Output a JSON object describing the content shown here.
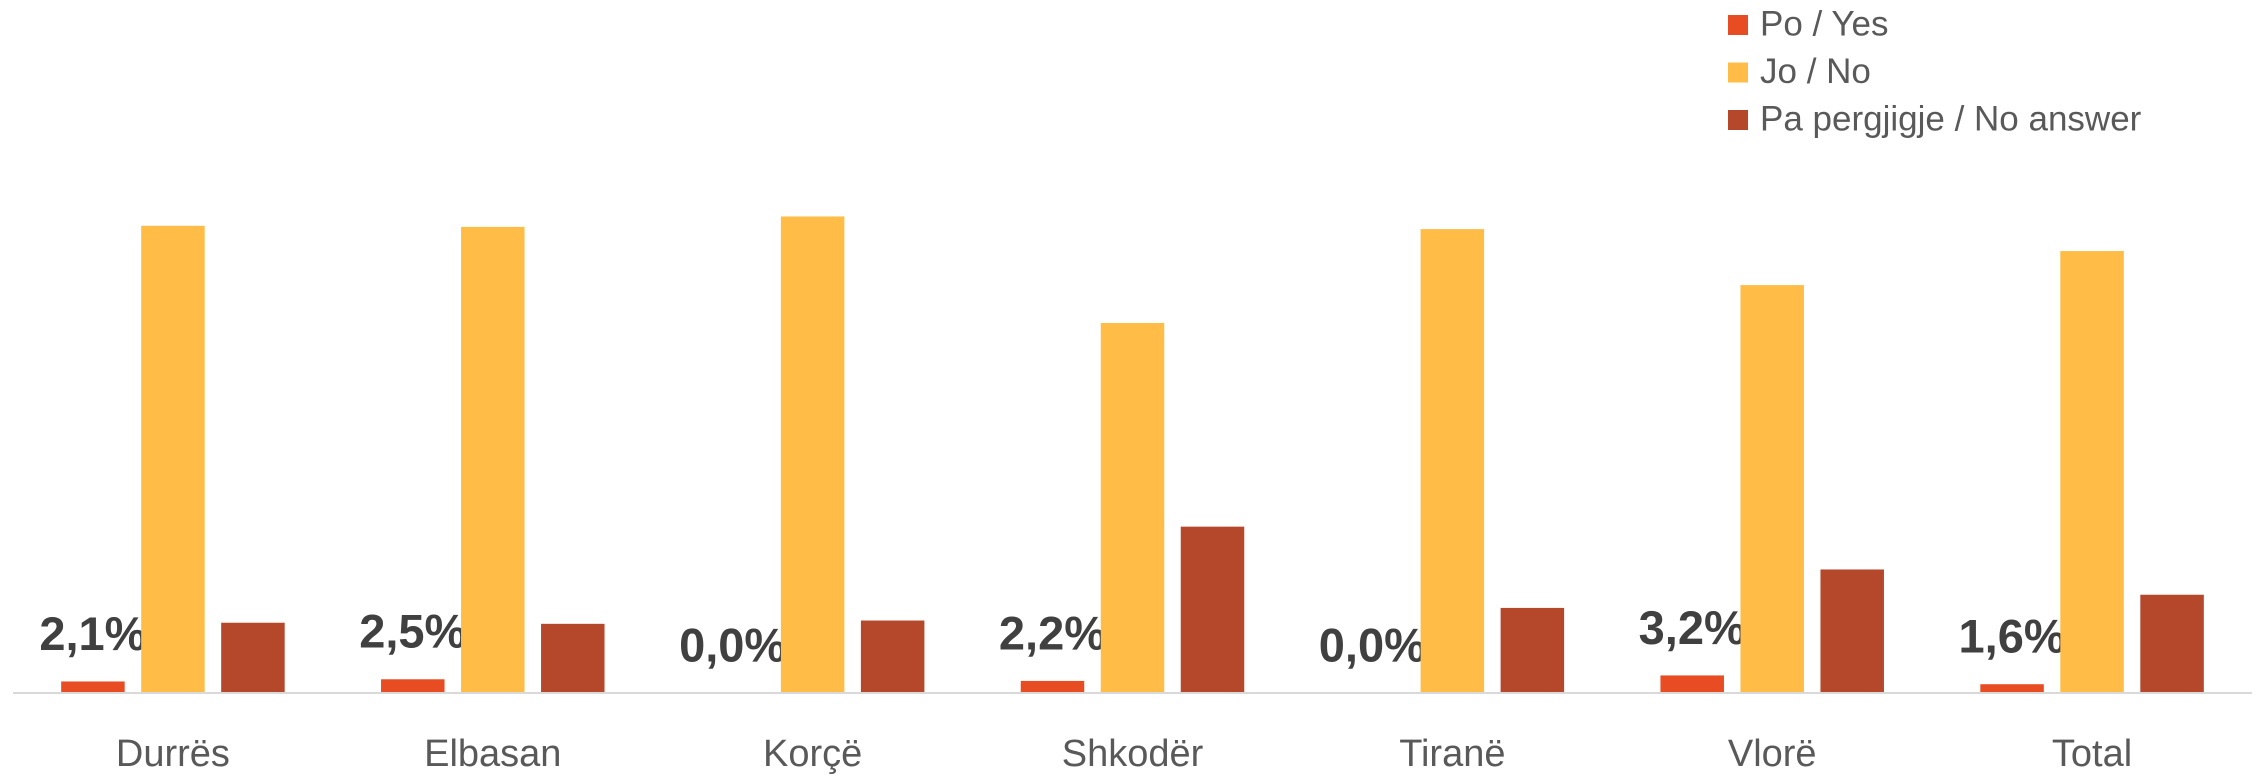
{
  "chart_data": {
    "type": "bar",
    "categories": [
      "Durrës",
      "Elbasan",
      "Korçë",
      "Shkodër",
      "Tiranë",
      "Vlorë",
      "Total"
    ],
    "series": [
      {
        "name": "Po / Yes",
        "color": "#e84c22",
        "values": [
          2.1,
          2.5,
          0.0,
          2.2,
          0.0,
          3.2,
          1.6
        ],
        "value_labels": [
          "2,1%",
          "2,5%",
          "0,0%",
          "2,2%",
          "0,0%",
          "3,2%",
          "1,6%"
        ]
      },
      {
        "name": "Jo / No",
        "color": "#ffbc47",
        "values": [
          85.1,
          84.9,
          86.8,
          67.4,
          84.5,
          74.3,
          80.5
        ]
      },
      {
        "name": "Pa pergjigje / No answer",
        "color": "#b5482a",
        "values": [
          12.8,
          12.6,
          13.2,
          30.3,
          15.5,
          22.5,
          17.9
        ]
      }
    ],
    "legend": "top-right"
  }
}
